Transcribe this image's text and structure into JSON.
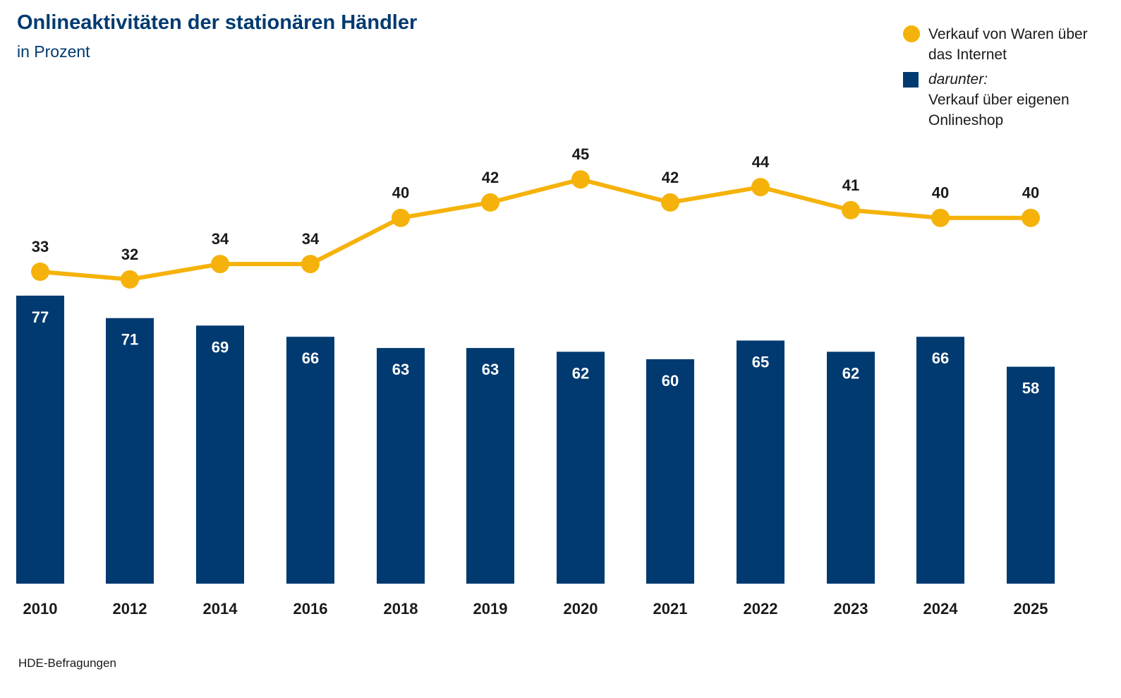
{
  "title": "Onlineaktivitäten der stationären Händler",
  "subtitle": "in Prozent",
  "source": "HDE-Befragungen",
  "legend": {
    "line_label_1": "Verkauf von Waren über",
    "line_label_2": "das Internet",
    "bar_label_1": "darunter:",
    "bar_label_2": "Verkauf über eigenen",
    "bar_label_3": "Onlineshop"
  },
  "colors": {
    "bar": "#003a70",
    "line": "#f5b20a",
    "text_dark": "#1a1a1a",
    "title": "#003a70"
  },
  "chart_data": {
    "type": "bar",
    "categories": [
      "2010",
      "2012",
      "2014",
      "2016",
      "2018",
      "2019",
      "2020",
      "2021",
      "2022",
      "2023",
      "2024",
      "2025"
    ],
    "series": [
      {
        "name": "darunter: Verkauf über eigenen Onlineshop",
        "type": "bar",
        "values": [
          77,
          71,
          69,
          66,
          63,
          63,
          62,
          60,
          65,
          62,
          66,
          58
        ]
      },
      {
        "name": "Verkauf von Waren über das Internet",
        "type": "line",
        "values": [
          33,
          32,
          34,
          34,
          40,
          42,
          45,
          42,
          44,
          41,
          40,
          40
        ]
      }
    ],
    "title": "Onlineaktivitäten der stationären Händler",
    "ylabel": "in Prozent",
    "grid": false,
    "legend_position": "top-right"
  }
}
